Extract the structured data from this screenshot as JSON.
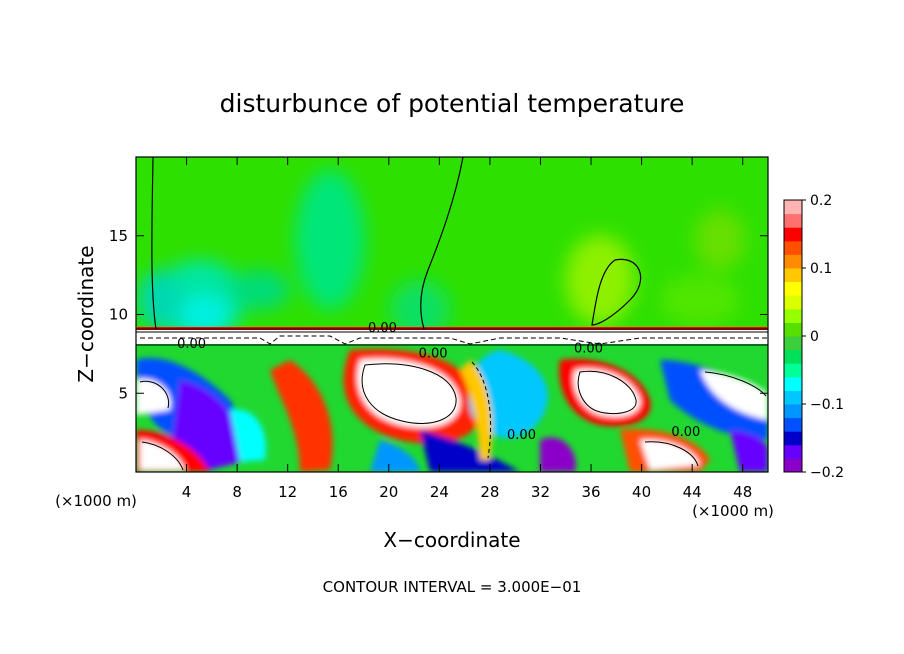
{
  "chart_data": {
    "type": "heatmap",
    "title": "disturbunce of potential temperature",
    "xlabel": "X−coordinate",
    "ylabel": "Z−coordinate",
    "x_unit_left": "(×1000 m)",
    "x_unit_right": "(×1000 m)",
    "xlim": [
      0,
      50
    ],
    "ylim": [
      0,
      20
    ],
    "xticks": [
      4,
      8,
      12,
      16,
      20,
      24,
      28,
      32,
      36,
      40,
      44,
      48
    ],
    "yticks": [
      5,
      10,
      15
    ],
    "colorbar": {
      "range": [
        -0.2,
        0.2
      ],
      "ticks": [
        0.2,
        0.1,
        0,
        -0.1,
        -0.2
      ],
      "tick_labels": [
        "0.2",
        "0.1",
        "0",
        "−0.1",
        "−0.2"
      ],
      "colors": [
        "#8b00c8",
        "#6600ff",
        "#0000c8",
        "#0050ff",
        "#0096ff",
        "#00c8ff",
        "#00ffff",
        "#00ff96",
        "#00e05a",
        "#3ccf3c",
        "#56e000",
        "#96ff00",
        "#dcff00",
        "#ffff00",
        "#ffc800",
        "#ff8c00",
        "#ff5000",
        "#ff0000",
        "#ff7070",
        "#ffb4b4"
      ]
    },
    "contour_labels": [
      {
        "x": 19.5,
        "z": 9.2,
        "text": "0.00"
      },
      {
        "x": 4.4,
        "z": 8.2,
        "text": "0.00"
      },
      {
        "x": 23.5,
        "z": 7.6,
        "text": "0.00"
      },
      {
        "x": 35.8,
        "z": 7.9,
        "text": "0.00"
      },
      {
        "x": 30.5,
        "z": 2.4,
        "text": "0.00"
      },
      {
        "x": 43.5,
        "z": 2.6,
        "text": "0.00"
      }
    ],
    "grid": false,
    "legend": "colorbar-right",
    "note": "CONTOUR INTERVAL = 3.000E−01"
  }
}
